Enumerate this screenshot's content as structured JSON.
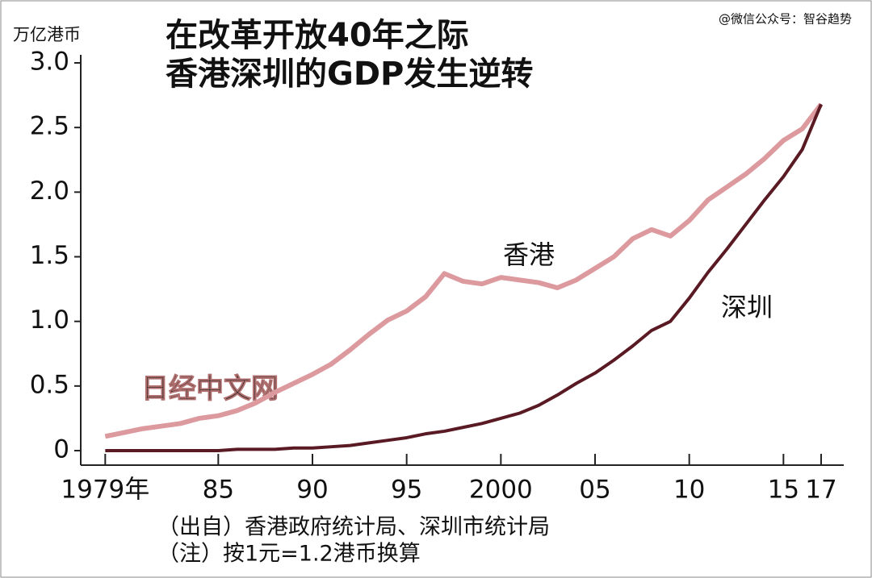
{
  "chart_data": {
    "type": "line",
    "title": "在改革开放40年之际",
    "subtitle": "香港深圳的GDP发生逆转",
    "y_label": "万亿港币",
    "watermark": "@微信公众号：智谷趋势",
    "annotations": [
      "日经中文网",
      "（出自）香港政府统计局、深圳市统计局",
      "（注）按1元=1.2港币换算"
    ],
    "x": [
      1979,
      1980,
      1981,
      1982,
      1983,
      1984,
      1985,
      1986,
      1987,
      1988,
      1989,
      1990,
      1991,
      1992,
      1993,
      1994,
      1995,
      1996,
      1997,
      1998,
      1999,
      2000,
      2001,
      2002,
      2003,
      2004,
      2005,
      2006,
      2007,
      2008,
      2009,
      2010,
      2011,
      2012,
      2013,
      2014,
      2015,
      2016,
      2017
    ],
    "series": [
      {
        "name": "香港",
        "color": "#dc9a9f",
        "values": [
          0.11,
          0.14,
          0.17,
          0.19,
          0.21,
          0.25,
          0.27,
          0.31,
          0.37,
          0.45,
          0.52,
          0.59,
          0.67,
          0.78,
          0.9,
          1.01,
          1.08,
          1.19,
          1.37,
          1.31,
          1.29,
          1.34,
          1.32,
          1.3,
          1.26,
          1.32,
          1.41,
          1.5,
          1.64,
          1.71,
          1.66,
          1.78,
          1.94,
          2.04,
          2.14,
          2.26,
          2.4,
          2.49,
          2.68
        ]
      },
      {
        "name": "深圳",
        "color": "#5a1a24",
        "values": [
          0,
          0,
          0,
          0,
          0,
          0,
          0,
          0.01,
          0.01,
          0.01,
          0.02,
          0.02,
          0.03,
          0.04,
          0.06,
          0.08,
          0.1,
          0.13,
          0.15,
          0.18,
          0.21,
          0.25,
          0.29,
          0.35,
          0.43,
          0.52,
          0.6,
          0.7,
          0.81,
          0.93,
          1.0,
          1.18,
          1.38,
          1.56,
          1.75,
          1.94,
          2.12,
          2.33,
          2.68
        ]
      }
    ],
    "xlim": [
      1977.7,
      2018.2
    ],
    "xticks": [
      {
        "value": 1979,
        "label": "1979年"
      },
      {
        "value": 1985,
        "label": "85"
      },
      {
        "value": 1990,
        "label": "90"
      },
      {
        "value": 1995,
        "label": "95"
      },
      2000,
      {
        "value": 2005,
        "label": "05"
      },
      {
        "value": 2010,
        "label": "10"
      },
      {
        "value": 2015,
        "label": "15"
      },
      {
        "value": 2017,
        "label": "17"
      }
    ],
    "ylim": [
      0,
      3.0
    ],
    "yticks": [
      0,
      0.5,
      {
        "value": 1,
        "label": "1.0"
      },
      1.5,
      {
        "value": 2,
        "label": "2.0"
      },
      2.5,
      {
        "value": 3,
        "label": "3.0"
      }
    ],
    "grid": false
  }
}
